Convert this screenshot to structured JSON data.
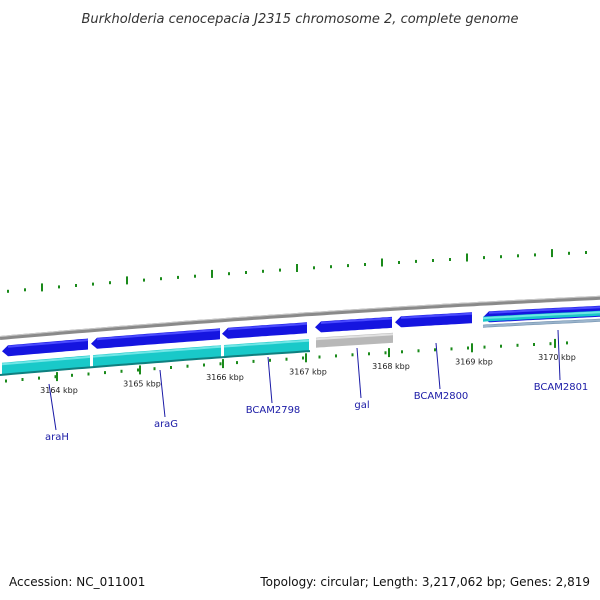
{
  "title": "Burkholderia cenocepacia J2315 chromosome 2, complete genome",
  "footer": {
    "accession": "Accession: NC_011001",
    "summary": "Topology: circular; Length: 3,217,062 bp; Genes: 2,819"
  },
  "colors": {
    "backbone": "#8a8a8a",
    "cds_forward": "#1515e0",
    "cds_forward_light": "#4a4aff",
    "cds_gray": "#b8b8b8",
    "feature_cyan": "#19c9c9",
    "feature_cyan_light": "#70e6e6",
    "feature_steel": "#6a8aa8",
    "tick_green": "#1a8a1a",
    "label_blue": "#1a1aa6"
  },
  "scale_ticks": [
    {
      "label": "3164 kbp"
    },
    {
      "label": "3165 kbp"
    },
    {
      "label": "3166 kbp"
    },
    {
      "label": "3167 kbp"
    },
    {
      "label": "3168 kbp"
    },
    {
      "label": "3169 kbp"
    },
    {
      "label": "3170 kbp"
    }
  ],
  "genes": [
    {
      "name": "araH"
    },
    {
      "name": "araG"
    },
    {
      "name": "BCAM2798"
    },
    {
      "name": "gal"
    },
    {
      "name": "BCAM2800"
    },
    {
      "name": "BCAM2801"
    }
  ]
}
